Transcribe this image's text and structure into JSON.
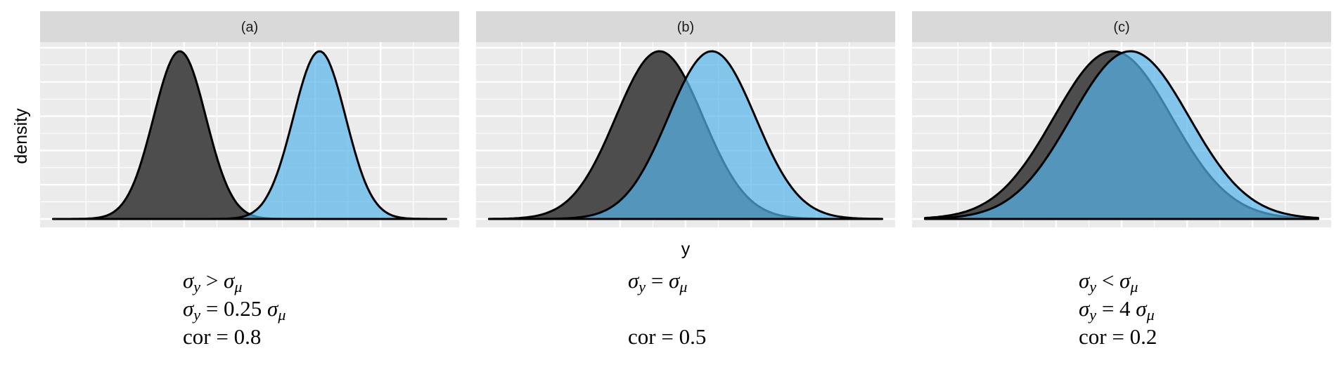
{
  "chart_data": [
    {
      "type": "area",
      "facet_label": "(a)",
      "xlim": [
        -4.8,
        4.8
      ],
      "series": [
        {
          "name": "",
          "color": "#4d4d4d",
          "mean": -1.6,
          "sd": 0.6
        },
        {
          "name": "",
          "color": "#56b4e9",
          "mean": 1.6,
          "sd": 0.6
        }
      ],
      "annotation": [
        {
          "sym": "σ",
          "sub": "y",
          "rest": " >  ",
          "sym2": "σ",
          "sub2": "μ"
        },
        {
          "sym": "σ",
          "sub": "y",
          "rest": " = 0.25 ",
          "sym2": "σ",
          "sub2": "μ"
        },
        {
          "text": "cor = 0.8"
        }
      ]
    },
    {
      "type": "area",
      "facet_label": "(b)",
      "xlim": [
        -4.8,
        4.8
      ],
      "series": [
        {
          "name": "",
          "color": "#4d4d4d",
          "mean": -0.6,
          "sd": 1.0
        },
        {
          "name": "",
          "color": "#56b4e9",
          "mean": 0.6,
          "sd": 1.0
        }
      ],
      "annotation": [
        {
          "sym": "σ",
          "sub": "y",
          "rest": " =  ",
          "sym2": "σ",
          "sub2": "μ"
        },
        {
          "text": ""
        },
        {
          "text": "cor = 0.5"
        }
      ]
    },
    {
      "type": "area",
      "facet_label": "(c)",
      "xlim": [
        -4.8,
        4.8
      ],
      "series": [
        {
          "name": "",
          "color": "#4d4d4d",
          "mean": -0.2,
          "sd": 1.35
        },
        {
          "name": "",
          "color": "#56b4e9",
          "mean": 0.2,
          "sd": 1.35
        }
      ],
      "annotation": [
        {
          "sym": "σ",
          "sub": "y",
          "rest": " <  ",
          "sym2": "σ",
          "sub2": "μ"
        },
        {
          "sym": "σ",
          "sub": "y",
          "rest": " = 4 ",
          "sym2": "σ",
          "sub2": "μ"
        },
        {
          "text": "cor = 0.2"
        }
      ]
    }
  ],
  "axes": {
    "xlabel": "y",
    "ylabel": "density",
    "grid": true,
    "show_tick_labels": false
  },
  "colors": {
    "dark_series": "#4d4d4d",
    "light_series": "#56b4e9",
    "panel_background": "#ebebeb",
    "strip_background": "#d9d9d9"
  }
}
